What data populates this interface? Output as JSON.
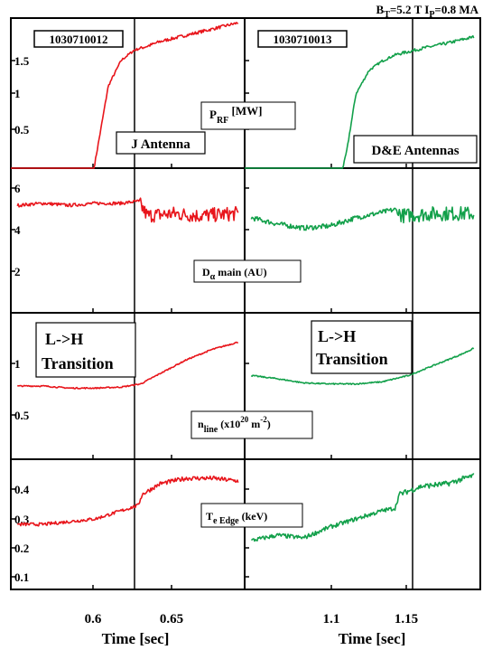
{
  "header": {
    "bt_label": "B",
    "bt_sub": "T",
    "bt_value": "=5.2 T I",
    "ip_sub": "P",
    "ip_value": "=0.8 MA"
  },
  "colors": {
    "left_trace": "#e8151b",
    "right_trace": "#12a04a",
    "frame": "#000000"
  },
  "columns": [
    {
      "shot": "1030710012",
      "xlabel": "Time [sec]",
      "ticks": [
        "0.6",
        "0.65"
      ]
    },
    {
      "shot": "1030710013",
      "xlabel": "Time [sec]",
      "ticks": [
        "1.1",
        "1.15"
      ]
    }
  ],
  "rows": [
    {
      "ticks": [
        "1.5",
        "1",
        "0.5"
      ],
      "label_main": "P",
      "label_sub": "RF",
      "label_tail": " [MW]"
    },
    {
      "ticks": [
        "6",
        "4",
        "2"
      ],
      "label_main": "D",
      "label_sub": "α",
      "label_tail": " main (AU)"
    },
    {
      "ticks": [
        "1",
        "0.5"
      ],
      "label_main": "n",
      "label_sub": "line",
      "label_tail": " (x10",
      "label_sup": "20",
      "label_tail2": " m",
      "label_sup2": "-2",
      "label_tail3": ")"
    },
    {
      "ticks": [
        "0.4",
        "0.3",
        "0.2",
        "0.1"
      ],
      "label_main": "T",
      "label_sub": "e Edge",
      "label_tail": " (keV)"
    }
  ],
  "annotations": {
    "j_antenna": "J Antenna",
    "de_antennas": "D&E Antennas",
    "lh_left_1": "L->H",
    "lh_left_2": "Transition",
    "lh_right_1": "L->H",
    "lh_right_2": "Transition"
  },
  "chart_data": [
    {
      "type": "line",
      "panel": "P_RF left",
      "shot": "1030710012",
      "ylabel": "P_RF [MW]",
      "xlim": [
        0.535,
        0.715
      ],
      "ylim": [
        0,
        1.92
      ],
      "transition_x": 0.634,
      "series": [
        {
          "x": [
            0.535,
            0.599,
            0.602,
            0.61,
            0.62,
            0.63,
            0.64,
            0.65,
            0.67,
            0.69,
            0.71
          ],
          "values": [
            0,
            0,
            0.28,
            1.05,
            1.38,
            1.51,
            1.56,
            1.62,
            1.7,
            1.78,
            1.86
          ]
        }
      ]
    },
    {
      "type": "line",
      "panel": "P_RF right",
      "shot": "1030710013",
      "ylabel": "P_RF [MW]",
      "xlim": [
        1.035,
        1.215
      ],
      "ylim": [
        0,
        1.92
      ],
      "transition_x": 1.152,
      "series": [
        {
          "x": [
            1.035,
            1.11,
            1.113,
            1.12,
            1.13,
            1.14,
            1.15,
            1.17,
            1.19,
            1.21
          ],
          "values": [
            0,
            0,
            0.22,
            0.95,
            1.25,
            1.37,
            1.45,
            1.53,
            1.6,
            1.68
          ]
        }
      ]
    },
    {
      "type": "line",
      "panel": "D_alpha left",
      "ylabel": "D_alpha main (AU)",
      "xlim": [
        0.535,
        0.715
      ],
      "ylim": [
        0,
        7
      ],
      "transition_x": 0.634,
      "series": [
        {
          "x": [
            0.54,
            0.56,
            0.58,
            0.6,
            0.62,
            0.633,
            0.64,
            0.66,
            0.68,
            0.71
          ],
          "values": [
            5.2,
            5.3,
            5.2,
            5.3,
            5.3,
            5.4,
            4.7,
            4.8,
            4.7,
            4.8
          ]
        }
      ]
    },
    {
      "type": "line",
      "panel": "D_alpha right",
      "ylabel": "D_alpha main (AU)",
      "xlim": [
        1.035,
        1.215
      ],
      "ylim": [
        0,
        7
      ],
      "transition_x": 1.152,
      "series": [
        {
          "x": [
            1.04,
            1.06,
            1.08,
            1.1,
            1.12,
            1.15,
            1.155,
            1.18,
            1.21
          ],
          "values": [
            4.6,
            4.3,
            4.1,
            4.2,
            4.6,
            5.0,
            4.7,
            4.8,
            4.8
          ]
        }
      ]
    },
    {
      "type": "line",
      "panel": "n_line left",
      "ylabel": "n_line (x10^20 m^-2)",
      "xlim": [
        0.535,
        0.715
      ],
      "ylim": [
        0,
        1.4
      ],
      "transition_x": 0.634,
      "series": [
        {
          "x": [
            0.54,
            0.56,
            0.58,
            0.6,
            0.62,
            0.635,
            0.65,
            0.67,
            0.69,
            0.71
          ],
          "values": [
            0.7,
            0.7,
            0.68,
            0.68,
            0.69,
            0.72,
            0.82,
            0.95,
            1.05,
            1.12
          ]
        }
      ]
    },
    {
      "type": "line",
      "panel": "n_line right",
      "ylabel": "n_line (x10^20 m^-2)",
      "xlim": [
        1.035,
        1.215
      ],
      "ylim": [
        0,
        1.4
      ],
      "transition_x": 1.152,
      "series": [
        {
          "x": [
            1.04,
            1.06,
            1.08,
            1.1,
            1.12,
            1.14,
            1.16,
            1.18,
            1.2,
            1.21
          ],
          "values": [
            0.8,
            0.77,
            0.73,
            0.72,
            0.72,
            0.74,
            0.8,
            0.9,
            1.0,
            1.06
          ]
        }
      ]
    },
    {
      "type": "line",
      "panel": "Te edge left",
      "ylabel": "T_e Edge (keV)",
      "xlim": [
        0.535,
        0.715
      ],
      "ylim": [
        0,
        0.48
      ],
      "transition_x": 0.634,
      "series": [
        {
          "x": [
            0.54,
            0.56,
            0.58,
            0.6,
            0.62,
            0.633,
            0.636,
            0.65,
            0.67,
            0.69,
            0.71
          ],
          "values": [
            0.24,
            0.24,
            0.25,
            0.26,
            0.29,
            0.31,
            0.35,
            0.39,
            0.41,
            0.41,
            0.4
          ]
        }
      ]
    },
    {
      "type": "line",
      "panel": "Te edge right",
      "ylabel": "T_e Edge (keV)",
      "xlim": [
        1.035,
        1.215
      ],
      "ylim": [
        0,
        0.48
      ],
      "transition_x": 1.152,
      "series": [
        {
          "x": [
            1.04,
            1.06,
            1.08,
            1.1,
            1.12,
            1.14,
            1.15,
            1.153,
            1.17,
            1.19,
            1.21
          ],
          "values": [
            0.18,
            0.2,
            0.19,
            0.23,
            0.26,
            0.29,
            0.3,
            0.35,
            0.38,
            0.39,
            0.42
          ]
        }
      ]
    }
  ]
}
